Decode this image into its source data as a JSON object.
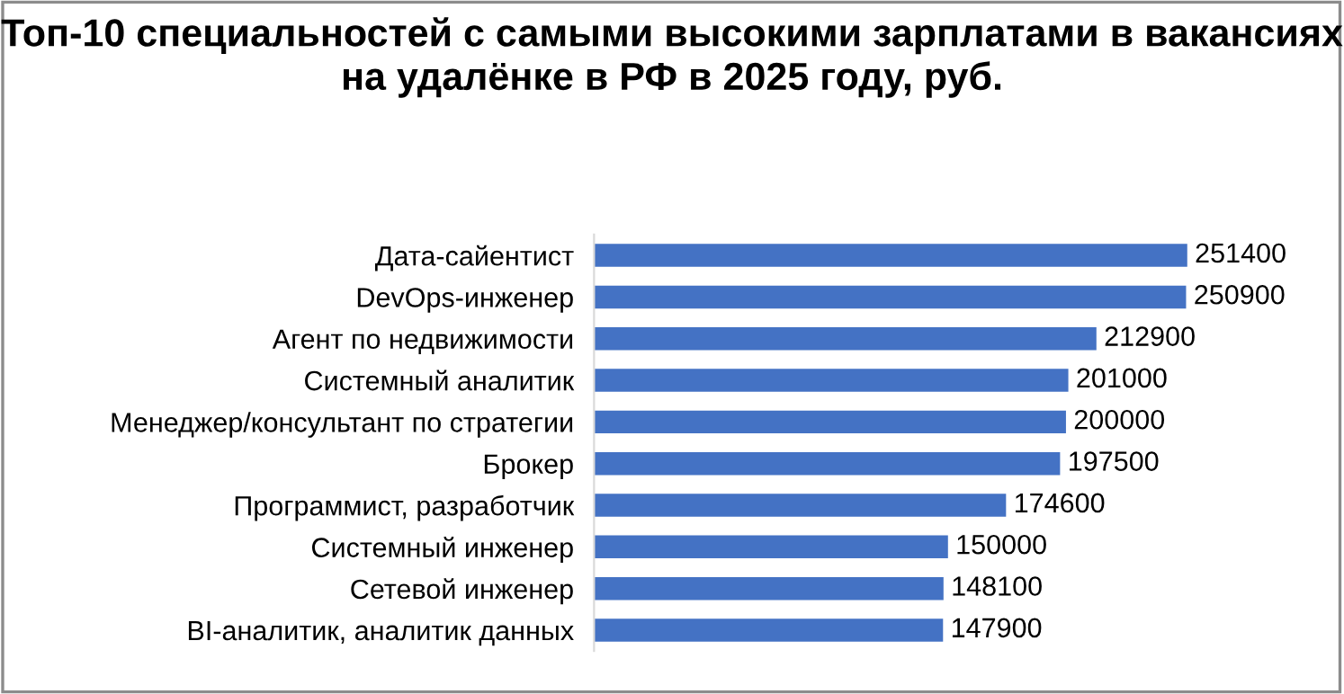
{
  "chart_data": {
    "type": "bar",
    "orientation": "horizontal",
    "title": "Топ-10 специальностей с самыми высокими зарплатами в вакансиях на удалёнке в РФ в 2025 году, руб.",
    "categories": [
      "Дата-сайентист",
      "DevOps-инженер",
      "Агент по недвижимости",
      "Системный аналитик",
      "Менеджер/консультант по стратегии",
      "Брокер",
      "Программист, разработчик",
      "Системный инженер",
      "Сетевой инженер",
      "BI-аналитик, аналитик данных"
    ],
    "values": [
      251400,
      250900,
      212900,
      201000,
      200000,
      197500,
      174600,
      150000,
      148100,
      147900
    ],
    "color": "#4472c4",
    "data_labels": true,
    "grid": false,
    "legend": false
  }
}
